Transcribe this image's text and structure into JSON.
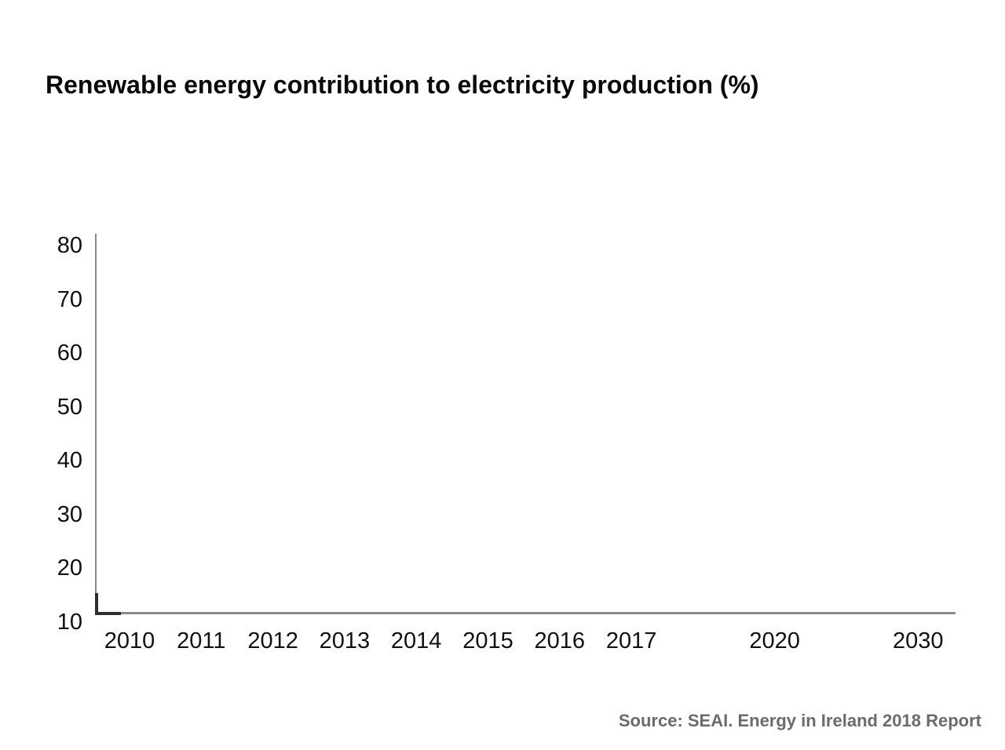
{
  "title": "Renewable energy contribution to electricity production (%)",
  "source_note": "Source: SEAI. Energy in Ireland 2018 Report",
  "colors": {
    "background": "#ffffff",
    "title_text": "#0a0a0a",
    "tick_text": "#111111",
    "axis_line": "#8a8a8a",
    "origin_mark": "#2f2f2f",
    "source_text": "#6b6b6b"
  },
  "chart_data": {
    "type": "line",
    "title": "Renewable energy contribution to electricity production (%)",
    "xlabel": "",
    "ylabel": "",
    "x_tick_labels": [
      "2010",
      "2011",
      "2012",
      "2013",
      "2014",
      "2015",
      "2016",
      "2017",
      "2020",
      "2030"
    ],
    "x_tick_units": [
      0,
      1,
      2,
      3,
      4,
      5,
      6,
      7,
      9,
      11
    ],
    "y_ticks": [
      10,
      20,
      30,
      40,
      50,
      60,
      70,
      80
    ],
    "ylim": [
      10,
      81
    ],
    "grid": false,
    "legend": "none",
    "series": []
  }
}
